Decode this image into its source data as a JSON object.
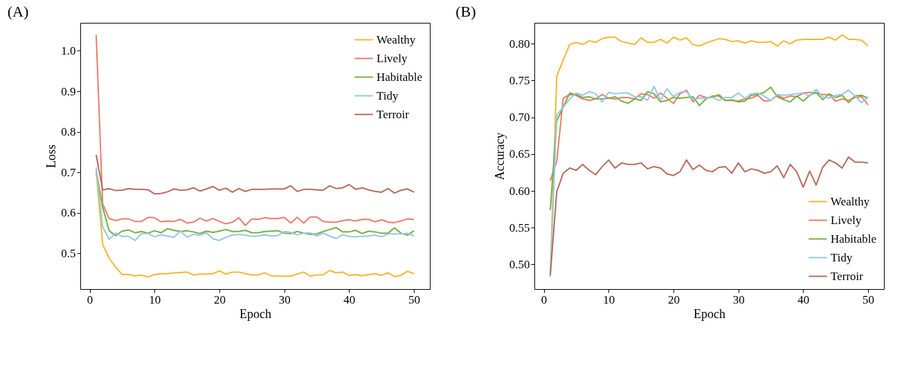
{
  "chart_data": [
    {
      "type": "line",
      "title": "(A)",
      "xlabel": "Epoch",
      "ylabel": "Loss",
      "legend": "top right",
      "grid": false,
      "line_style": "solid",
      "x": [
        1,
        2,
        3,
        4,
        5,
        6,
        7,
        8,
        9,
        10,
        11,
        12,
        13,
        14,
        15,
        16,
        17,
        18,
        19,
        20,
        21,
        22,
        23,
        24,
        25,
        26,
        27,
        28,
        29,
        30,
        31,
        32,
        33,
        34,
        35,
        36,
        37,
        38,
        39,
        40,
        41,
        42,
        43,
        44,
        45,
        46,
        47,
        48,
        49,
        50
      ],
      "xlim": [
        -1.45,
        52.45
      ],
      "xticks": [
        0,
        10,
        20,
        30,
        40,
        50
      ],
      "ylim": [
        0.412,
        1.069
      ],
      "yticks": [
        {
          "value": 0.5,
          "label": "0.5"
        },
        {
          "value": 0.6,
          "label": "0.6"
        },
        {
          "value": 0.7,
          "label": "0.7"
        },
        {
          "value": 0.8,
          "label": "0.8"
        },
        {
          "value": 0.9,
          "label": "0.9"
        },
        {
          "value": 1.0,
          "label": "1.0"
        }
      ],
      "series": [
        {
          "name": "Wealthy",
          "color": "#f5b731",
          "values": [
            0.703,
            0.522,
            0.488,
            0.466,
            0.448,
            0.448,
            0.445,
            0.446,
            0.442,
            0.448,
            0.45,
            0.45,
            0.452,
            0.453,
            0.454,
            0.447,
            0.449,
            0.449,
            0.45,
            0.457,
            0.449,
            0.454,
            0.454,
            0.45,
            0.447,
            0.447,
            0.452,
            0.445,
            0.444,
            0.444,
            0.444,
            0.449,
            0.454,
            0.444,
            0.447,
            0.447,
            0.458,
            0.452,
            0.454,
            0.446,
            0.448,
            0.445,
            0.448,
            0.45,
            0.446,
            0.452,
            0.443,
            0.446,
            0.456,
            0.45
          ]
        },
        {
          "name": "Lively",
          "color": "#ef7b6a",
          "values": [
            1.039,
            0.622,
            0.586,
            0.581,
            0.585,
            0.585,
            0.579,
            0.579,
            0.589,
            0.588,
            0.578,
            0.58,
            0.579,
            0.584,
            0.575,
            0.577,
            0.587,
            0.58,
            0.586,
            0.579,
            0.573,
            0.577,
            0.588,
            0.569,
            0.585,
            0.584,
            0.588,
            0.586,
            0.586,
            0.589,
            0.575,
            0.589,
            0.575,
            0.59,
            0.59,
            0.579,
            0.577,
            0.577,
            0.581,
            0.583,
            0.58,
            0.584,
            0.584,
            0.578,
            0.583,
            0.577,
            0.576,
            0.58,
            0.585,
            0.584
          ]
        },
        {
          "name": "Habitable",
          "color": "#76b041",
          "values": [
            0.705,
            0.614,
            0.556,
            0.544,
            0.555,
            0.558,
            0.551,
            0.554,
            0.55,
            0.556,
            0.551,
            0.561,
            0.557,
            0.554,
            0.556,
            0.553,
            0.549,
            0.555,
            0.552,
            0.555,
            0.559,
            0.554,
            0.554,
            0.557,
            0.551,
            0.551,
            0.554,
            0.555,
            0.556,
            0.55,
            0.549,
            0.554,
            0.55,
            0.547,
            0.548,
            0.554,
            0.559,
            0.564,
            0.553,
            0.553,
            0.557,
            0.549,
            0.555,
            0.553,
            0.55,
            0.55,
            0.563,
            0.55,
            0.545,
            0.556
          ]
        },
        {
          "name": "Tidy",
          "color": "#93c9e8",
          "values": [
            0.712,
            0.565,
            0.535,
            0.55,
            0.542,
            0.542,
            0.532,
            0.549,
            0.549,
            0.541,
            0.546,
            0.543,
            0.54,
            0.555,
            0.54,
            0.547,
            0.545,
            0.551,
            0.536,
            0.532,
            0.54,
            0.545,
            0.547,
            0.545,
            0.542,
            0.543,
            0.546,
            0.543,
            0.544,
            0.554,
            0.552,
            0.546,
            0.55,
            0.551,
            0.543,
            0.55,
            0.543,
            0.537,
            0.546,
            0.542,
            0.541,
            0.542,
            0.543,
            0.545,
            0.541,
            0.548,
            0.548,
            0.548,
            0.55,
            0.543
          ]
        },
        {
          "name": "Terroir",
          "color": "#b66c5a",
          "values": [
            0.743,
            0.657,
            0.66,
            0.655,
            0.656,
            0.66,
            0.658,
            0.658,
            0.657,
            0.647,
            0.648,
            0.652,
            0.659,
            0.656,
            0.657,
            0.662,
            0.654,
            0.659,
            0.665,
            0.656,
            0.661,
            0.651,
            0.66,
            0.653,
            0.658,
            0.658,
            0.658,
            0.659,
            0.659,
            0.659,
            0.667,
            0.653,
            0.658,
            0.658,
            0.657,
            0.656,
            0.667,
            0.66,
            0.662,
            0.67,
            0.658,
            0.662,
            0.657,
            0.653,
            0.651,
            0.66,
            0.649,
            0.656,
            0.659,
            0.651
          ]
        }
      ]
    },
    {
      "type": "line",
      "title": "(B)",
      "xlabel": "Epoch",
      "ylabel": "Accuracy",
      "legend": "bottom right",
      "grid": false,
      "line_style": "solid",
      "x": [
        1,
        2,
        3,
        4,
        5,
        6,
        7,
        8,
        9,
        10,
        11,
        12,
        13,
        14,
        15,
        16,
        17,
        18,
        19,
        20,
        21,
        22,
        23,
        24,
        25,
        26,
        27,
        28,
        29,
        30,
        31,
        32,
        33,
        34,
        35,
        36,
        37,
        38,
        39,
        40,
        41,
        42,
        43,
        44,
        45,
        46,
        47,
        48,
        49,
        50
      ],
      "xlim": [
        -1.45,
        52.45
      ],
      "xticks": [
        0,
        10,
        20,
        30,
        40,
        50
      ],
      "ylim": [
        0.4665,
        0.8285
      ],
      "yticks": [
        {
          "value": 0.5,
          "label": "0.50"
        },
        {
          "value": 0.55,
          "label": "0.55"
        },
        {
          "value": 0.6,
          "label": "0.60"
        },
        {
          "value": 0.65,
          "label": "0.65"
        },
        {
          "value": 0.7,
          "label": "0.70"
        },
        {
          "value": 0.75,
          "label": "0.75"
        },
        {
          "value": 0.8,
          "label": "0.80"
        }
      ],
      "series": [
        {
          "name": "Wealthy",
          "color": "#f5b731",
          "values": [
            0.485,
            0.756,
            0.778,
            0.799,
            0.802,
            0.799,
            0.804,
            0.802,
            0.807,
            0.809,
            0.809,
            0.803,
            0.801,
            0.799,
            0.808,
            0.802,
            0.802,
            0.806,
            0.801,
            0.809,
            0.805,
            0.808,
            0.799,
            0.797,
            0.801,
            0.804,
            0.807,
            0.806,
            0.803,
            0.804,
            0.801,
            0.804,
            0.802,
            0.802,
            0.803,
            0.797,
            0.804,
            0.8,
            0.805,
            0.806,
            0.806,
            0.806,
            0.806,
            0.809,
            0.805,
            0.812,
            0.806,
            0.806,
            0.805,
            0.797
          ]
        },
        {
          "name": "Lively",
          "color": "#ef7b6a",
          "values": [
            0.614,
            0.64,
            0.726,
            0.731,
            0.73,
            0.725,
            0.723,
            0.725,
            0.731,
            0.726,
            0.725,
            0.727,
            0.727,
            0.725,
            0.732,
            0.731,
            0.726,
            0.733,
            0.726,
            0.719,
            0.732,
            0.737,
            0.721,
            0.73,
            0.727,
            0.727,
            0.731,
            0.723,
            0.723,
            0.722,
            0.725,
            0.726,
            0.73,
            0.722,
            0.723,
            0.73,
            0.726,
            0.729,
            0.728,
            0.733,
            0.734,
            0.733,
            0.731,
            0.731,
            0.722,
            0.725,
            0.723,
            0.727,
            0.728,
            0.717
          ]
        },
        {
          "name": "Habitable",
          "color": "#76b041",
          "values": [
            0.574,
            0.695,
            0.714,
            0.733,
            0.731,
            0.727,
            0.728,
            0.725,
            0.725,
            0.726,
            0.728,
            0.722,
            0.719,
            0.725,
            0.723,
            0.735,
            0.732,
            0.721,
            0.723,
            0.727,
            0.726,
            0.727,
            0.728,
            0.716,
            0.725,
            0.729,
            0.729,
            0.723,
            0.724,
            0.721,
            0.722,
            0.73,
            0.731,
            0.734,
            0.741,
            0.728,
            0.724,
            0.721,
            0.729,
            0.722,
            0.73,
            0.734,
            0.724,
            0.732,
            0.727,
            0.73,
            0.72,
            0.729,
            0.73,
            0.726
          ]
        },
        {
          "name": "Tidy",
          "color": "#93c9e8",
          "values": [
            0.483,
            0.703,
            0.714,
            0.725,
            0.733,
            0.73,
            0.735,
            0.732,
            0.721,
            0.734,
            0.732,
            0.733,
            0.733,
            0.728,
            0.728,
            0.723,
            0.742,
            0.723,
            0.739,
            0.728,
            0.734,
            0.735,
            0.724,
            0.726,
            0.726,
            0.727,
            0.723,
            0.727,
            0.727,
            0.733,
            0.726,
            0.732,
            0.733,
            0.729,
            0.723,
            0.731,
            0.73,
            0.731,
            0.732,
            0.733,
            0.729,
            0.738,
            0.728,
            0.726,
            0.73,
            0.731,
            0.737,
            0.729,
            0.72,
            0.728
          ]
        },
        {
          "name": "Terroir",
          "color": "#b66c5a",
          "values": [
            0.485,
            0.599,
            0.624,
            0.631,
            0.628,
            0.636,
            0.628,
            0.622,
            0.633,
            0.642,
            0.631,
            0.638,
            0.636,
            0.636,
            0.638,
            0.63,
            0.633,
            0.631,
            0.623,
            0.621,
            0.626,
            0.642,
            0.629,
            0.635,
            0.628,
            0.626,
            0.632,
            0.633,
            0.624,
            0.638,
            0.626,
            0.63,
            0.628,
            0.624,
            0.626,
            0.634,
            0.618,
            0.636,
            0.626,
            0.605,
            0.627,
            0.608,
            0.632,
            0.642,
            0.638,
            0.631,
            0.646,
            0.639,
            0.639,
            0.638
          ]
        }
      ]
    }
  ]
}
